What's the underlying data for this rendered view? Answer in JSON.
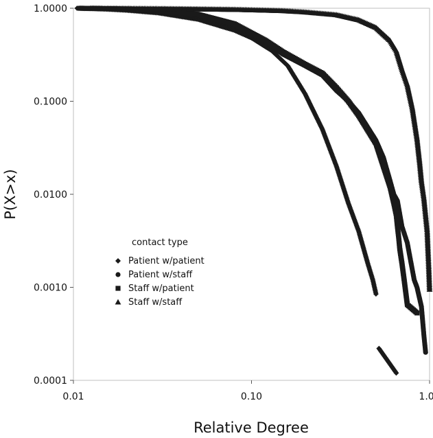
{
  "chart_data": {
    "type": "scatter",
    "x_scale": "log",
    "y_scale": "log",
    "xlabel": "Relative Degree",
    "ylabel": "P(X>x)",
    "xlim": [
      0.01,
      1.0
    ],
    "ylim": [
      0.0001,
      1.0
    ],
    "x_ticks": [
      {
        "value": 0.01,
        "label": "0.01"
      },
      {
        "value": 0.1,
        "label": "0.10"
      },
      {
        "value": 1.0,
        "label": "1.00"
      }
    ],
    "y_ticks": [
      {
        "value": 1.0,
        "label": "1.0000"
      },
      {
        "value": 0.1,
        "label": "0.1000"
      },
      {
        "value": 0.01,
        "label": "0.0100"
      },
      {
        "value": 0.001,
        "label": "0.0010"
      },
      {
        "value": 0.0001,
        "label": "0.0001"
      }
    ],
    "grid": false,
    "legend": {
      "title": "contact type",
      "position": "inside lower-left"
    },
    "marker_color": "#1a1a1a",
    "series": [
      {
        "name": "Patient w/patient",
        "marker": "diamond",
        "points": [
          [
            0.0105,
            1.0
          ],
          [
            0.015,
            0.98
          ],
          [
            0.02,
            0.95
          ],
          [
            0.03,
            0.89
          ],
          [
            0.05,
            0.76
          ],
          [
            0.08,
            0.58
          ],
          [
            0.1,
            0.48
          ],
          [
            0.13,
            0.35
          ],
          [
            0.16,
            0.24
          ],
          [
            0.2,
            0.12
          ],
          [
            0.25,
            0.05
          ],
          [
            0.3,
            0.02
          ],
          [
            0.35,
            0.008
          ],
          [
            0.4,
            0.004
          ],
          [
            0.45,
            0.0018
          ],
          [
            0.48,
            0.0012
          ],
          [
            0.5,
            0.00085
          ],
          [
            0.52,
            0.00022
          ],
          [
            0.65,
            0.00012
          ]
        ]
      },
      {
        "name": "Patient w/staff",
        "marker": "circle",
        "points": [
          [
            0.011,
            1.0
          ],
          [
            0.02,
            0.97
          ],
          [
            0.03,
            0.93
          ],
          [
            0.05,
            0.83
          ],
          [
            0.08,
            0.65
          ],
          [
            0.12,
            0.43
          ],
          [
            0.15,
            0.32
          ],
          [
            0.2,
            0.24
          ],
          [
            0.25,
            0.19
          ],
          [
            0.3,
            0.13
          ],
          [
            0.35,
            0.1
          ],
          [
            0.4,
            0.075
          ],
          [
            0.5,
            0.038
          ],
          [
            0.55,
            0.025
          ],
          [
            0.6,
            0.014
          ],
          [
            0.63,
            0.01
          ],
          [
            0.66,
            0.0085
          ],
          [
            0.7,
            0.0045
          ],
          [
            0.75,
            0.003
          ],
          [
            0.78,
            0.002
          ],
          [
            0.82,
            0.0012
          ],
          [
            0.85,
            0.001
          ],
          [
            0.9,
            0.00062
          ],
          [
            0.93,
            0.0003
          ],
          [
            0.95,
            0.0002
          ]
        ]
      },
      {
        "name": "Staff w/patient",
        "marker": "square",
        "points": [
          [
            0.011,
            1.0
          ],
          [
            0.02,
            0.98
          ],
          [
            0.03,
            0.95
          ],
          [
            0.05,
            0.86
          ],
          [
            0.08,
            0.68
          ],
          [
            0.12,
            0.45
          ],
          [
            0.15,
            0.34
          ],
          [
            0.2,
            0.25
          ],
          [
            0.25,
            0.2
          ],
          [
            0.3,
            0.14
          ],
          [
            0.35,
            0.1
          ],
          [
            0.4,
            0.07
          ],
          [
            0.5,
            0.035
          ],
          [
            0.55,
            0.02
          ],
          [
            0.6,
            0.012
          ],
          [
            0.63,
            0.008
          ],
          [
            0.65,
            0.006
          ],
          [
            0.66,
            0.0045
          ],
          [
            0.67,
            0.0035
          ],
          [
            0.68,
            0.0026
          ],
          [
            0.7,
            0.0018
          ],
          [
            0.72,
            0.0012
          ],
          [
            0.75,
            0.00065
          ],
          [
            0.85,
            0.00053
          ]
        ]
      },
      {
        "name": "Staff w/staff",
        "marker": "triangle",
        "points": [
          [
            0.0125,
            1.0
          ],
          [
            0.02,
            0.995
          ],
          [
            0.03,
            0.99
          ],
          [
            0.05,
            0.98
          ],
          [
            0.08,
            0.97
          ],
          [
            0.1,
            0.96
          ],
          [
            0.15,
            0.94
          ],
          [
            0.2,
            0.91
          ],
          [
            0.3,
            0.85
          ],
          [
            0.4,
            0.75
          ],
          [
            0.5,
            0.62
          ],
          [
            0.6,
            0.45
          ],
          [
            0.65,
            0.35
          ],
          [
            0.7,
            0.22
          ],
          [
            0.75,
            0.15
          ],
          [
            0.8,
            0.085
          ],
          [
            0.85,
            0.04
          ],
          [
            0.88,
            0.022
          ],
          [
            0.9,
            0.014
          ],
          [
            0.93,
            0.009
          ],
          [
            0.95,
            0.006
          ],
          [
            0.97,
            0.004
          ],
          [
            0.98,
            0.0025
          ],
          [
            0.99,
            0.0016
          ],
          [
            1.0,
            0.00095
          ]
        ]
      }
    ]
  }
}
